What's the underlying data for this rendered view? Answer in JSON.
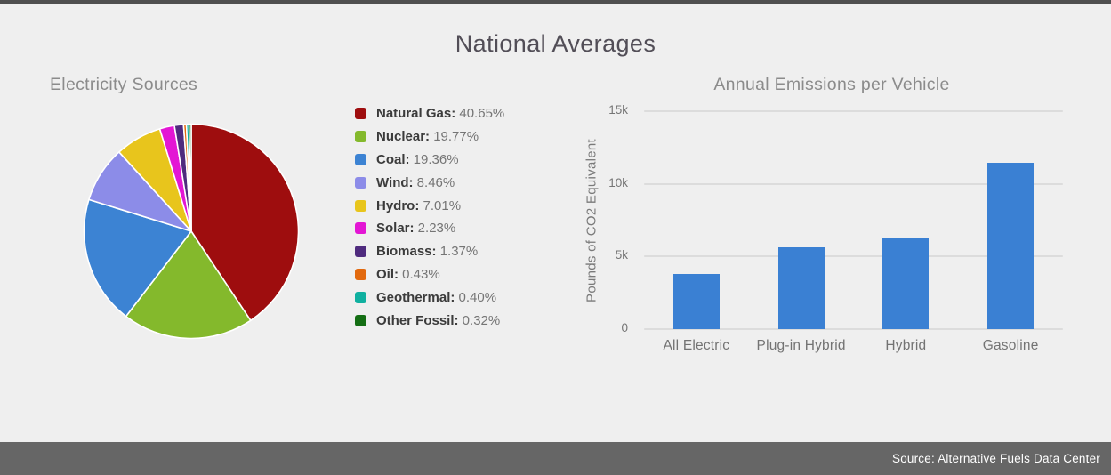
{
  "header": {
    "title": "National Averages"
  },
  "footer": {
    "source": "Source: Alternative Fuels Data Center"
  },
  "colors": {
    "background": "#efefef",
    "top_bar": "#505050",
    "footer_bar": "#666666",
    "footer_text": "#ffffff",
    "title_text": "#524e57",
    "section_title_text": "#8b8b8b",
    "axis_text": "#757575",
    "gridline": "#dcdcdc",
    "legend_label": "#3b3b3b",
    "legend_value": "#757575",
    "pie_border": "#ffffff",
    "bar": "#3a80d3"
  },
  "chart_data": [
    {
      "type": "pie",
      "title": "Electricity Sources",
      "labels": [
        "Natural Gas",
        "Nuclear",
        "Coal",
        "Wind",
        "Hydro",
        "Solar",
        "Biomass",
        "Oil",
        "Geothermal",
        "Other Fossil"
      ],
      "values": [
        40.65,
        19.77,
        19.36,
        8.46,
        7.01,
        2.23,
        1.37,
        0.43,
        0.4,
        0.32
      ],
      "values_display": [
        "40.65%",
        "19.77%",
        "19.36%",
        "8.46%",
        "7.01%",
        "2.23%",
        "1.37%",
        "0.43%",
        "0.40%",
        "0.32%"
      ],
      "colors": [
        "#9e0d0e",
        "#84b92c",
        "#3c83d3",
        "#8c8ce8",
        "#e8c51c",
        "#e316d4",
        "#4f2b7e",
        "#e2690e",
        "#10b0a0",
        "#146e14"
      ],
      "unit": "%",
      "legend_position": "right",
      "start_angle_deg": -90,
      "direction": "clockwise"
    },
    {
      "type": "bar",
      "title": "Annual Emissions per Vehicle",
      "categories": [
        "All Electric",
        "Plug-in Hybrid",
        "Hybrid",
        "Gasoline"
      ],
      "values": [
        3774,
        5655,
        6258,
        11435
      ],
      "ylabel": "Pounds of CO2 Equivalent",
      "ylim": [
        0,
        15000
      ],
      "yticks": [
        {
          "value": 0,
          "label": "0"
        },
        {
          "value": 5000,
          "label": "5k"
        },
        {
          "value": 10000,
          "label": "10k"
        },
        {
          "value": 15000,
          "label": "15k"
        }
      ],
      "bar_color": "#3a80d3",
      "grid": true
    }
  ]
}
